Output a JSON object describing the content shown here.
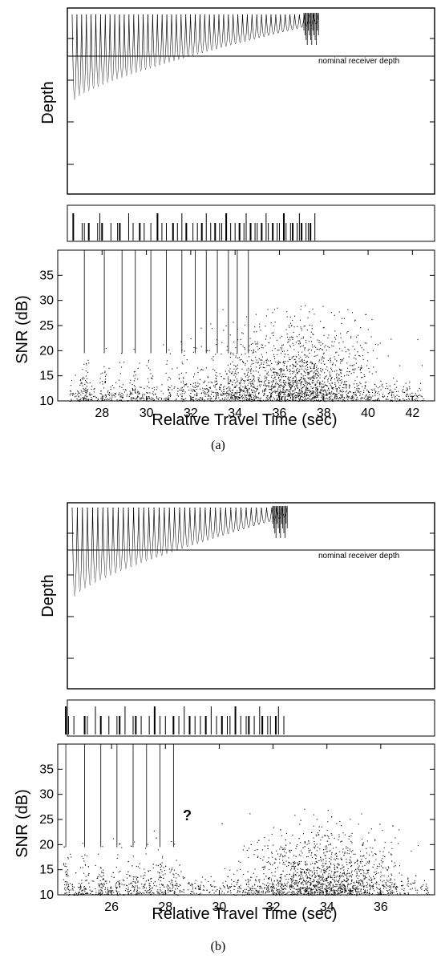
{
  "chart_data": [
    {
      "panel_label": "(a)",
      "depth_panel": {
        "ylabel": "Depth",
        "annotation": "nominal receiver depth",
        "arrival_end_time": 37.7
      },
      "arrival_panel": {
        "arrival_times": [
          26.7,
          27.1,
          27.2,
          27.4,
          27.8,
          27.9,
          28.0,
          28.4,
          28.7,
          28.8,
          29.2,
          29.4,
          29.7,
          29.9,
          30.2,
          30.5,
          30.7,
          30.9,
          31.2,
          31.4,
          31.6,
          31.8,
          32.1,
          32.3,
          32.5,
          32.7,
          32.9,
          33.1,
          33.3,
          33.4,
          33.6,
          33.8,
          34.0,
          34.2,
          34.4,
          34.5,
          34.7,
          34.9,
          35.0,
          35.2,
          35.4,
          35.5,
          35.7,
          35.9,
          36.0,
          36.2,
          36.3,
          36.5,
          36.6,
          36.8,
          36.9,
          37.0,
          37.2,
          37.3,
          37.4,
          37.6
        ]
      },
      "snr_panel": {
        "type": "scatter",
        "xlabel": "Relative Travel Time (sec)",
        "ylabel": "SNR (dB)",
        "xlim": [
          26,
          43
        ],
        "ylim": [
          10,
          40
        ],
        "xticks": [
          "28",
          "30",
          "32",
          "34",
          "36",
          "38",
          "40",
          "42"
        ],
        "yticks": [
          "10",
          "15",
          "20",
          "25",
          "30",
          "35"
        ],
        "predicted_arrival_times": [
          27.2,
          28.1,
          28.9,
          29.5,
          30.2,
          30.9,
          31.6,
          32.2,
          32.7,
          33.2,
          33.7,
          34.1,
          34.6
        ],
        "point_cloud": {
          "center_time": 36.8,
          "center_snr": 17.5,
          "peak_snr": 29.5,
          "time_min": 26.5,
          "time_max": 42.5
        }
      }
    },
    {
      "panel_label": "(b)",
      "depth_panel": {
        "ylabel": "Depth",
        "annotation": "nominal receiver depth",
        "arrival_end_time": 36.0
      },
      "arrival_panel": {
        "arrival_times": [
          24.3,
          24.4,
          24.6,
          25.0,
          25.1,
          25.4,
          25.6,
          25.9,
          26.2,
          26.3,
          26.5,
          26.8,
          26.9,
          27.1,
          27.4,
          27.6,
          27.8,
          28.0,
          28.3,
          28.5,
          28.7,
          28.9,
          29.1,
          29.3,
          29.5,
          29.7,
          29.9,
          30.1,
          30.3,
          30.4,
          30.6,
          30.8,
          31.0,
          31.1,
          31.3,
          31.5,
          31.6,
          31.8,
          31.9,
          32.1,
          32.2,
          32.4
        ]
      },
      "snr_panel": {
        "type": "scatter",
        "xlabel": "Relative Travel Time (sec)",
        "ylabel": "SNR (dB)",
        "xlim": [
          24,
          38
        ],
        "ylim": [
          10,
          40
        ],
        "xticks": [
          "26",
          "28",
          "30",
          "32",
          "34",
          "36"
        ],
        "yticks": [
          "10",
          "15",
          "20",
          "25",
          "30",
          "35"
        ],
        "predicted_arrival_times": [
          24.3,
          25.0,
          25.6,
          26.2,
          26.8,
          27.3,
          27.8,
          28.3
        ],
        "annotation": "?",
        "point_cloud": {
          "center_time": 33.9,
          "center_snr": 16,
          "peak_snr": 27.5,
          "time_min": 24.2,
          "time_max": 37.8
        }
      }
    }
  ]
}
